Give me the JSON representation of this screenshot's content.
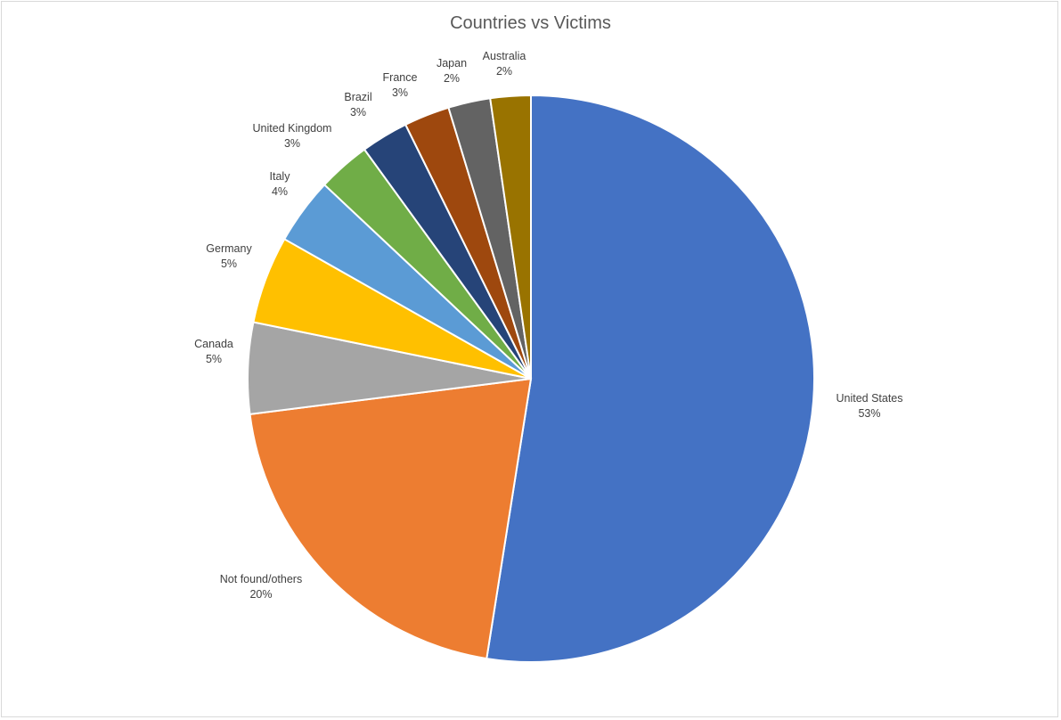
{
  "chart_data": {
    "type": "pie",
    "title": "Countries vs Victims",
    "slices": [
      {
        "name": "United States",
        "label": "53%",
        "value": 52.5,
        "color": "#4472c4"
      },
      {
        "name": "Not found/others",
        "label": "20%",
        "value": 20.5,
        "color": "#ed7d31"
      },
      {
        "name": "Canada",
        "label": "5%",
        "value": 5.2,
        "color": "#a5a5a5"
      },
      {
        "name": "Germany",
        "label": "5%",
        "value": 5.0,
        "color": "#ffc000"
      },
      {
        "name": "Italy",
        "label": "4%",
        "value": 3.8,
        "color": "#5b9bd5"
      },
      {
        "name": "United Kingdom",
        "label": "3%",
        "value": 3.0,
        "color": "#70ad47"
      },
      {
        "name": "Brazil",
        "label": "3%",
        "value": 2.7,
        "color": "#264478"
      },
      {
        "name": "France",
        "label": "3%",
        "value": 2.6,
        "color": "#9e480e"
      },
      {
        "name": "Japan",
        "label": "2%",
        "value": 2.4,
        "color": "#636363"
      },
      {
        "name": "Australia",
        "label": "2%",
        "value": 2.3,
        "color": "#997300"
      }
    ]
  }
}
